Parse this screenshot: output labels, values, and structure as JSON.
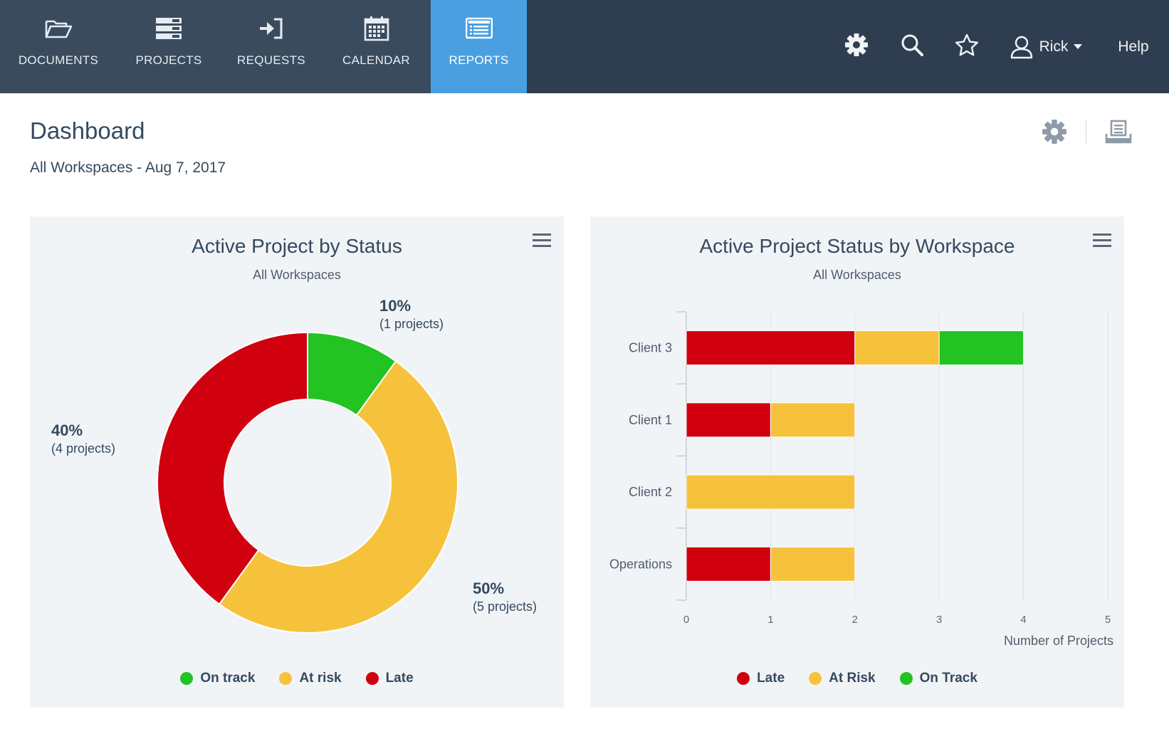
{
  "nav": {
    "tabs": [
      {
        "label": "DOCUMENTS",
        "icon": "folder-icon"
      },
      {
        "label": "PROJECTS",
        "icon": "projects-icon"
      },
      {
        "label": "REQUESTS",
        "icon": "requests-icon"
      },
      {
        "label": "CALENDAR",
        "icon": "calendar-icon"
      },
      {
        "label": "REPORTS",
        "icon": "reports-icon",
        "active": true
      }
    ],
    "user_name": "Rick",
    "help_label": "Help"
  },
  "header": {
    "title": "Dashboard",
    "subtitle": "All Workspaces - Aug 7, 2017"
  },
  "colors": {
    "nav_bg": "#2e3e50",
    "active_tab": "#4a9fe0",
    "late": "#d0000f",
    "at_risk": "#f7c23b",
    "on_track": "#22c322"
  },
  "chart_data": [
    {
      "type": "pie",
      "title": "Active Project by Status",
      "subtitle": "All Workspaces",
      "slices": [
        {
          "name": "On track",
          "value": 1,
          "percent_label": "10%",
          "count_label": "(1 projects)"
        },
        {
          "name": "At risk",
          "value": 5,
          "percent_label": "50%",
          "count_label": "(5 projects)"
        },
        {
          "name": "Late",
          "value": 4,
          "percent_label": "40%",
          "count_label": "(4 projects)"
        }
      ],
      "legend": [
        "On track",
        "At risk",
        "Late"
      ]
    },
    {
      "type": "bar",
      "orientation": "horizontal",
      "stacked": true,
      "title": "Active Project Status by Workspace",
      "subtitle": "All Workspaces",
      "categories": [
        "Client 3",
        "Client 1",
        "Client 2",
        "Operations"
      ],
      "series": [
        {
          "name": "Late",
          "values": [
            2,
            1,
            0,
            1
          ]
        },
        {
          "name": "At Risk",
          "values": [
            1,
            1,
            2,
            1
          ]
        },
        {
          "name": "On Track",
          "values": [
            1,
            0,
            0,
            0
          ]
        }
      ],
      "xlabel": "Number of Projects",
      "xlim": [
        0,
        5
      ],
      "xticks": [
        "0",
        "1",
        "2",
        "3",
        "4",
        "5"
      ],
      "legend": [
        "Late",
        "At Risk",
        "On Track"
      ]
    }
  ]
}
